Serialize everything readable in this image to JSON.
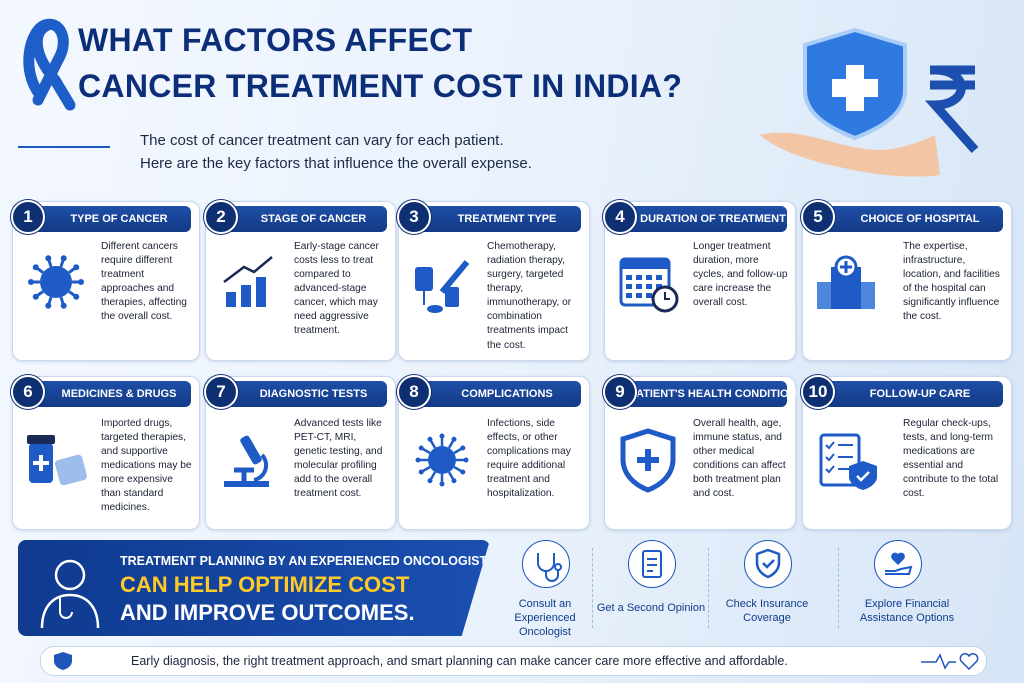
{
  "header": {
    "title_line1": "WHAT FACTORS AFFECT",
    "title_line2": "CANCER TREATMENT COST IN INDIA?",
    "intro_line1": "The cost of cancer treatment can vary for each patient.",
    "intro_line2": "Here are the key factors that influence the overall expense."
  },
  "factors": [
    {
      "number": 1,
      "title": "TYPE OF CANCER",
      "text": "Different cancers require different treatment approaches and therapies, affecting the overall cost."
    },
    {
      "number": 2,
      "title": "STAGE OF CANCER",
      "text": "Early-stage cancer costs less to treat compared to advanced-stage cancer, which may need aggressive treatment."
    },
    {
      "number": 3,
      "title": "TREATMENT TYPE",
      "text": "Chemotherapy, radiation therapy, surgery, targeted therapy, immunotherapy, or combination treatments impact the cost."
    },
    {
      "number": 4,
      "title": "DURATION OF TREATMENT",
      "text": "Longer treatment duration, more cycles, and follow-up care increase the overall cost."
    },
    {
      "number": 5,
      "title": "CHOICE OF HOSPITAL",
      "text": "The expertise, infrastructure, location, and facilities of the hospital can significantly influence the cost."
    },
    {
      "number": 6,
      "title": "MEDICINES & DRUGS",
      "text": "Imported drugs, targeted therapies, and supportive medications may be more expensive than standard medicines."
    },
    {
      "number": 7,
      "title": "DIAGNOSTIC TESTS",
      "text": "Advanced tests like PET-CT, MRI, genetic testing, and molecular profiling add to the overall treatment cost."
    },
    {
      "number": 8,
      "title": "COMPLICATIONS",
      "text": "Infections, side effects, or other complications may require additional treatment and hospitalization."
    },
    {
      "number": 9,
      "title": "PATIENT'S HEALTH CONDITION",
      "text": "Overall health, age, immune status, and other medical conditions can affect both treatment plan and cost."
    },
    {
      "number": 10,
      "title": "FOLLOW-UP CARE",
      "text": "Regular check-ups, tests, and long-term medications are essential and contribute to the total cost."
    }
  ],
  "banner": {
    "line1": "TREATMENT PLANNING BY AN EXPERIENCED ONCOLOGIST",
    "line2": "CAN HELP OPTIMIZE COST",
    "line3": "AND IMPROVE OUTCOMES."
  },
  "actions": [
    {
      "label": "Consult an Experienced Oncologist"
    },
    {
      "label": "Get a Second Opinion"
    },
    {
      "label": "Check Insurance Coverage"
    },
    {
      "label": "Explore Financial Assistance Options"
    }
  ],
  "footer": "Early diagnosis, the right treatment approach, and smart planning can make cancer care more effective and affordable."
}
